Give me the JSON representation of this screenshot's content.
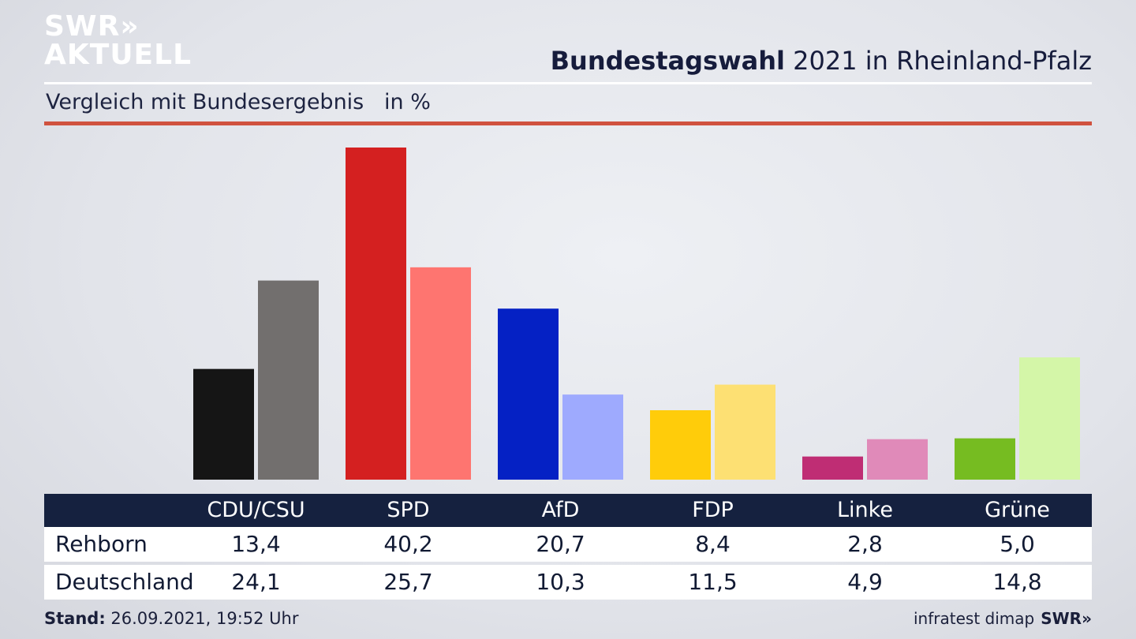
{
  "logo": {
    "line1": "SWR»",
    "line2": "AKTUELL"
  },
  "header": {
    "title_bold": "Bundestagswahl",
    "title_rest": " 2021 in Rheinland-Pfalz",
    "subtitle": "Vergleich mit Bundesergebnis   in %"
  },
  "table": {
    "rows": [
      {
        "label": "Rehborn",
        "values": [
          "13,4",
          "40,2",
          "20,7",
          "8,4",
          "2,8",
          "5,0"
        ]
      },
      {
        "label": "Deutschland",
        "values": [
          "24,1",
          "25,7",
          "10,3",
          "11,5",
          "4,9",
          "14,8"
        ]
      }
    ]
  },
  "footer": {
    "stand_label": "Stand:",
    "stand_value": " 26.09.2021, 19:52 Uhr",
    "source": "infratest dimap",
    "brand": "SWR»"
  },
  "chart_data": {
    "type": "bar",
    "categories": [
      "CDU/CSU",
      "SPD",
      "AfD",
      "FDP",
      "Linke",
      "Grüne"
    ],
    "series": [
      {
        "name": "Rehborn",
        "values": [
          13.4,
          40.2,
          20.7,
          8.4,
          2.8,
          5.0
        ],
        "colors": [
          "#151515",
          "#d42020",
          "#0521c4",
          "#ffcc0a",
          "#bf2d74",
          "#76bc21"
        ]
      },
      {
        "name": "Deutschland",
        "values": [
          24.1,
          25.7,
          10.3,
          11.5,
          4.9,
          14.8
        ],
        "colors": [
          "#726f6e",
          "#fe7570",
          "#9eaafe",
          "#fde073",
          "#e08ab9",
          "#d4f6a8"
        ]
      }
    ],
    "ylim": [
      0,
      40.2
    ],
    "grid": false,
    "legend": "table-below"
  }
}
